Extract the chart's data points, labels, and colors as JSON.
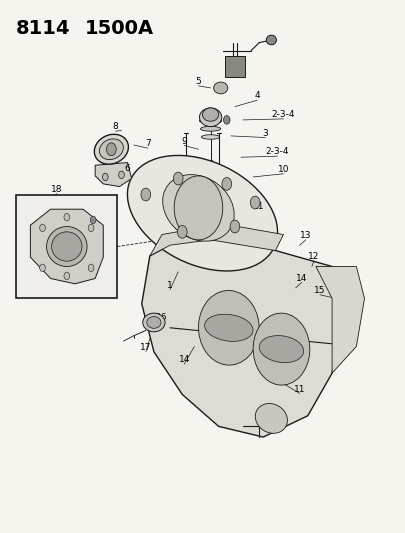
{
  "title_line1": "8114",
  "title_line2": "1500A",
  "background_color": "#f5f4ef",
  "line_color": "#1a1a1a",
  "title_color": "#000000",
  "title_fontsize": 14,
  "figsize": [
    4.05,
    5.33
  ],
  "dpi": 100
}
